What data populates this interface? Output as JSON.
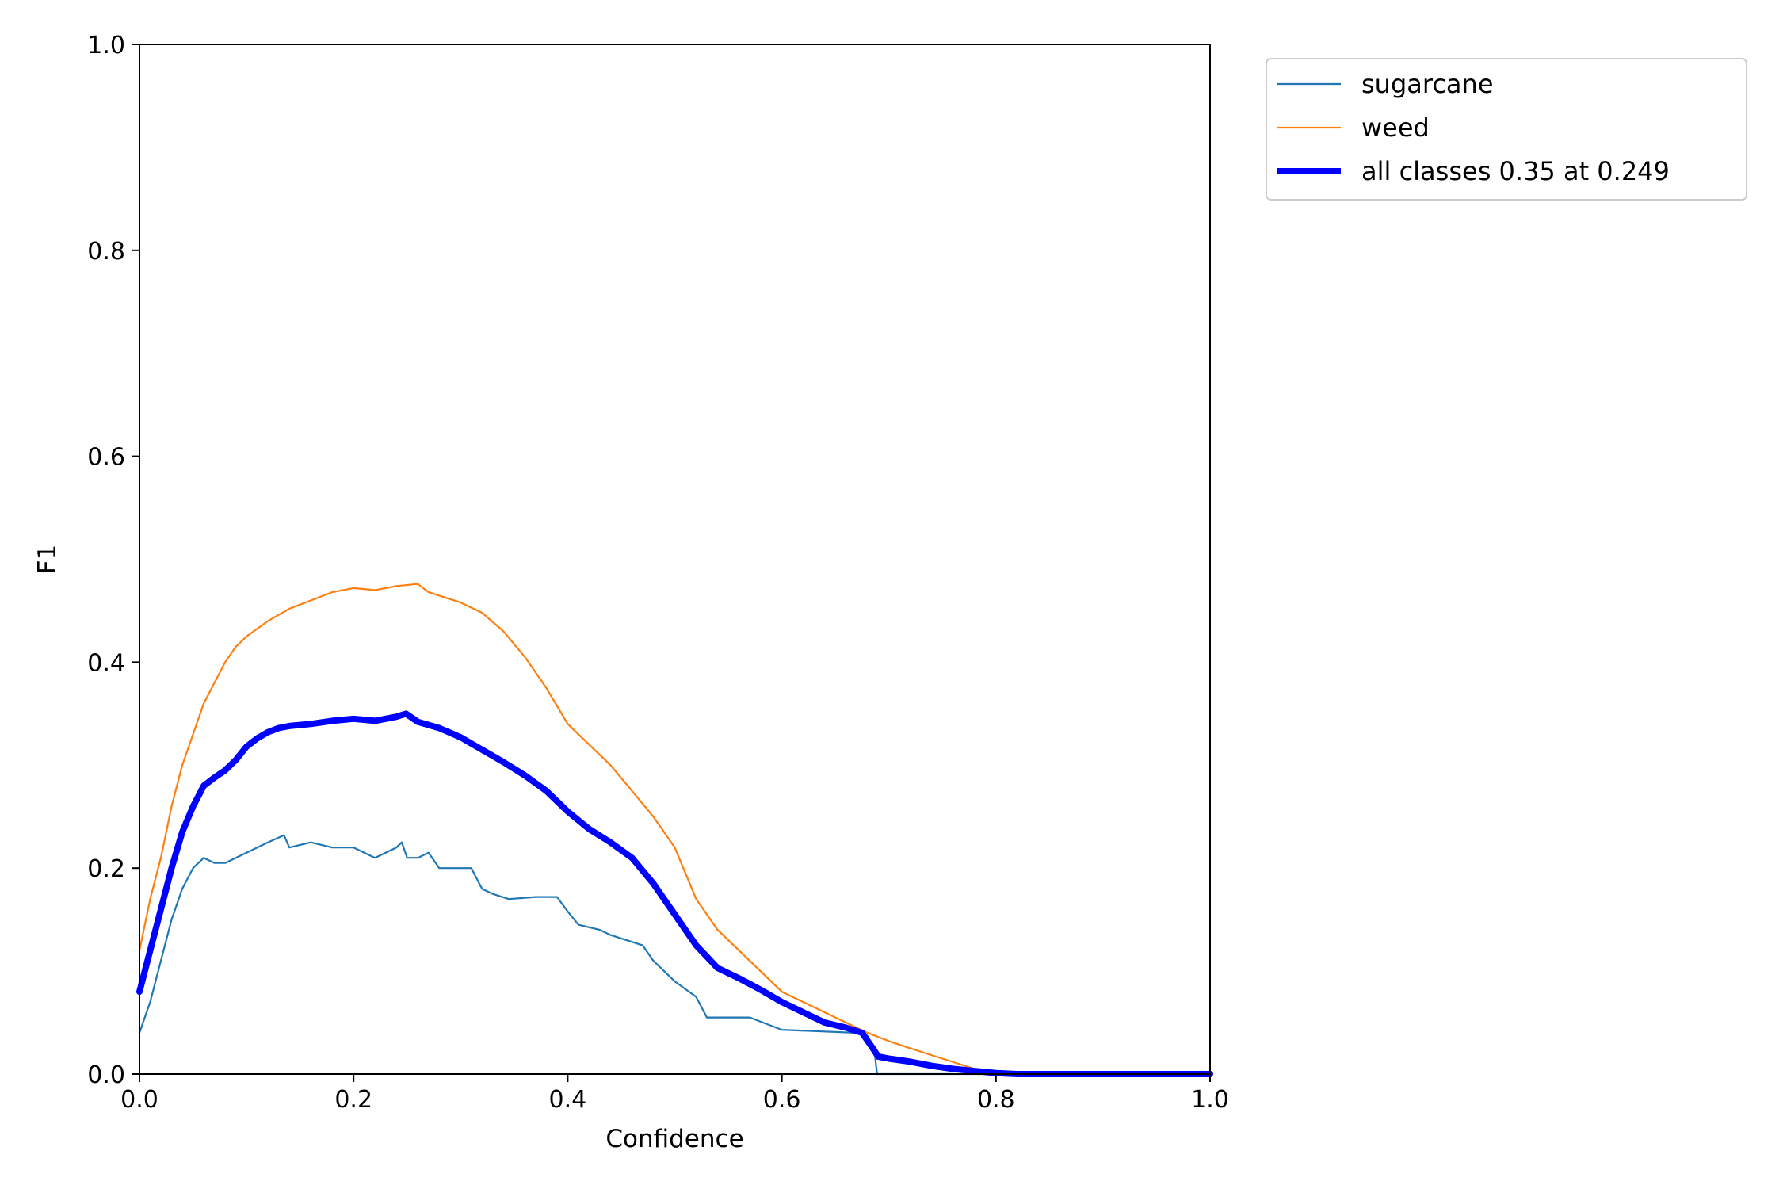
{
  "chart_data": {
    "type": "line",
    "xlabel": "Confidence",
    "ylabel": "F1",
    "xlim": [
      0.0,
      1.0
    ],
    "ylim": [
      0.0,
      1.0
    ],
    "xticks": [
      "0.0",
      "0.2",
      "0.4",
      "0.6",
      "0.8",
      "1.0"
    ],
    "yticks": [
      "0.0",
      "0.2",
      "0.4",
      "0.6",
      "0.8",
      "1.0"
    ],
    "grid": false,
    "legend_position": "outside-top-right",
    "series": [
      {
        "name": "sugarcane",
        "color": "#1f77b4",
        "style": "thin",
        "points": [
          [
            0.0,
            0.04
          ],
          [
            0.01,
            0.07
          ],
          [
            0.02,
            0.11
          ],
          [
            0.03,
            0.15
          ],
          [
            0.04,
            0.18
          ],
          [
            0.05,
            0.2
          ],
          [
            0.06,
            0.21
          ],
          [
            0.07,
            0.205
          ],
          [
            0.08,
            0.205
          ],
          [
            0.09,
            0.21
          ],
          [
            0.1,
            0.215
          ],
          [
            0.12,
            0.225
          ],
          [
            0.135,
            0.232
          ],
          [
            0.14,
            0.22
          ],
          [
            0.16,
            0.225
          ],
          [
            0.18,
            0.22
          ],
          [
            0.2,
            0.22
          ],
          [
            0.22,
            0.21
          ],
          [
            0.24,
            0.22
          ],
          [
            0.245,
            0.225
          ],
          [
            0.25,
            0.21
          ],
          [
            0.26,
            0.21
          ],
          [
            0.27,
            0.215
          ],
          [
            0.28,
            0.2
          ],
          [
            0.31,
            0.2
          ],
          [
            0.32,
            0.18
          ],
          [
            0.33,
            0.175
          ],
          [
            0.345,
            0.17
          ],
          [
            0.37,
            0.172
          ],
          [
            0.39,
            0.172
          ],
          [
            0.4,
            0.158
          ],
          [
            0.41,
            0.145
          ],
          [
            0.43,
            0.14
          ],
          [
            0.44,
            0.135
          ],
          [
            0.47,
            0.125
          ],
          [
            0.48,
            0.11
          ],
          [
            0.5,
            0.09
          ],
          [
            0.52,
            0.075
          ],
          [
            0.53,
            0.055
          ],
          [
            0.57,
            0.055
          ],
          [
            0.6,
            0.043
          ],
          [
            0.67,
            0.04
          ],
          [
            0.68,
            0.037
          ],
          [
            0.687,
            0.018
          ],
          [
            0.689,
            0.0
          ],
          [
            1.0,
            0.0
          ]
        ]
      },
      {
        "name": "weed",
        "color": "#ff7f0e",
        "style": "thin",
        "points": [
          [
            0.0,
            0.12
          ],
          [
            0.01,
            0.17
          ],
          [
            0.02,
            0.21
          ],
          [
            0.03,
            0.26
          ],
          [
            0.04,
            0.3
          ],
          [
            0.05,
            0.33
          ],
          [
            0.06,
            0.36
          ],
          [
            0.07,
            0.38
          ],
          [
            0.08,
            0.4
          ],
          [
            0.09,
            0.415
          ],
          [
            0.1,
            0.425
          ],
          [
            0.12,
            0.44
          ],
          [
            0.14,
            0.452
          ],
          [
            0.16,
            0.46
          ],
          [
            0.18,
            0.468
          ],
          [
            0.2,
            0.472
          ],
          [
            0.22,
            0.47
          ],
          [
            0.24,
            0.474
          ],
          [
            0.26,
            0.476
          ],
          [
            0.27,
            0.468
          ],
          [
            0.3,
            0.458
          ],
          [
            0.32,
            0.448
          ],
          [
            0.34,
            0.43
          ],
          [
            0.36,
            0.405
          ],
          [
            0.38,
            0.375
          ],
          [
            0.4,
            0.34
          ],
          [
            0.42,
            0.32
          ],
          [
            0.44,
            0.3
          ],
          [
            0.46,
            0.275
          ],
          [
            0.48,
            0.25
          ],
          [
            0.5,
            0.22
          ],
          [
            0.52,
            0.17
          ],
          [
            0.54,
            0.14
          ],
          [
            0.56,
            0.12
          ],
          [
            0.58,
            0.1
          ],
          [
            0.6,
            0.08
          ],
          [
            0.62,
            0.07
          ],
          [
            0.65,
            0.055
          ],
          [
            0.68,
            0.04
          ],
          [
            0.7,
            0.032
          ],
          [
            0.72,
            0.025
          ],
          [
            0.75,
            0.015
          ],
          [
            0.78,
            0.005
          ],
          [
            0.8,
            0.001
          ],
          [
            1.0,
            0.0
          ]
        ]
      },
      {
        "name": "all classes 0.35 at 0.249",
        "color": "#0000ff",
        "style": "thick",
        "points": [
          [
            0.0,
            0.08
          ],
          [
            0.01,
            0.12
          ],
          [
            0.02,
            0.16
          ],
          [
            0.03,
            0.2
          ],
          [
            0.04,
            0.235
          ],
          [
            0.05,
            0.26
          ],
          [
            0.06,
            0.28
          ],
          [
            0.07,
            0.288
          ],
          [
            0.08,
            0.295
          ],
          [
            0.09,
            0.305
          ],
          [
            0.1,
            0.318
          ],
          [
            0.11,
            0.326
          ],
          [
            0.12,
            0.332
          ],
          [
            0.13,
            0.336
          ],
          [
            0.14,
            0.338
          ],
          [
            0.16,
            0.34
          ],
          [
            0.18,
            0.343
          ],
          [
            0.2,
            0.345
          ],
          [
            0.22,
            0.343
          ],
          [
            0.24,
            0.347
          ],
          [
            0.249,
            0.35
          ],
          [
            0.26,
            0.342
          ],
          [
            0.28,
            0.336
          ],
          [
            0.3,
            0.327
          ],
          [
            0.32,
            0.315
          ],
          [
            0.34,
            0.303
          ],
          [
            0.36,
            0.29
          ],
          [
            0.38,
            0.275
          ],
          [
            0.4,
            0.255
          ],
          [
            0.42,
            0.238
          ],
          [
            0.44,
            0.225
          ],
          [
            0.46,
            0.21
          ],
          [
            0.48,
            0.185
          ],
          [
            0.5,
            0.155
          ],
          [
            0.52,
            0.125
          ],
          [
            0.54,
            0.103
          ],
          [
            0.56,
            0.093
          ],
          [
            0.58,
            0.082
          ],
          [
            0.6,
            0.07
          ],
          [
            0.62,
            0.06
          ],
          [
            0.64,
            0.05
          ],
          [
            0.66,
            0.045
          ],
          [
            0.675,
            0.04
          ],
          [
            0.685,
            0.025
          ],
          [
            0.69,
            0.017
          ],
          [
            0.7,
            0.015
          ],
          [
            0.72,
            0.012
          ],
          [
            0.74,
            0.008
          ],
          [
            0.76,
            0.005
          ],
          [
            0.78,
            0.003
          ],
          [
            0.8,
            0.001
          ],
          [
            0.82,
            0.0
          ],
          [
            1.0,
            0.0
          ]
        ]
      }
    ]
  }
}
